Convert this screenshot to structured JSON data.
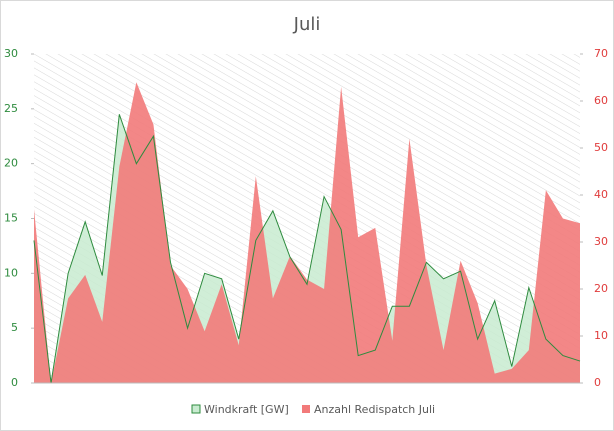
{
  "chart_data": {
    "type": "area",
    "title": "Juli",
    "categories": [
      null,
      null,
      null,
      null,
      null,
      null,
      null,
      null,
      null,
      null,
      null,
      null,
      null,
      null,
      null,
      null,
      null,
      null,
      null,
      null,
      null,
      null,
      null,
      null,
      null,
      null,
      null,
      null,
      null,
      null,
      null,
      null,
      null
    ],
    "series": [
      {
        "name": "Windkraft [GW]",
        "color": "#2e8b3e",
        "values": [
          13,
          0,
          10,
          14.7,
          9.8,
          24.5,
          20,
          22.5,
          11,
          5,
          10,
          9.5,
          4,
          13,
          15.7,
          11.5,
          9,
          17,
          14,
          2.5,
          3,
          7,
          7,
          11,
          9.5,
          10.2,
          4,
          7.5,
          1.5,
          8.7,
          4,
          2.5,
          2
        ]
      },
      {
        "name": "Anzahl Redispatch Juli",
        "color": "#f27a7a",
        "axis": "y2",
        "values": [
          37,
          0,
          18,
          23,
          13,
          46,
          64,
          55,
          25,
          20,
          11,
          21,
          8,
          44,
          18,
          27,
          22,
          20,
          63,
          31,
          33,
          9,
          52,
          25,
          7,
          26,
          17,
          2,
          3,
          7,
          41,
          35,
          34
        ]
      }
    ],
    "ylim": [
      0,
      30
    ],
    "yticks": [
      0,
      5,
      10,
      15,
      20,
      25,
      30
    ],
    "y2lim": [
      0,
      70
    ],
    "y2ticks": [
      0,
      10,
      20,
      30,
      40,
      50,
      60,
      70
    ],
    "legend": "bottom"
  }
}
